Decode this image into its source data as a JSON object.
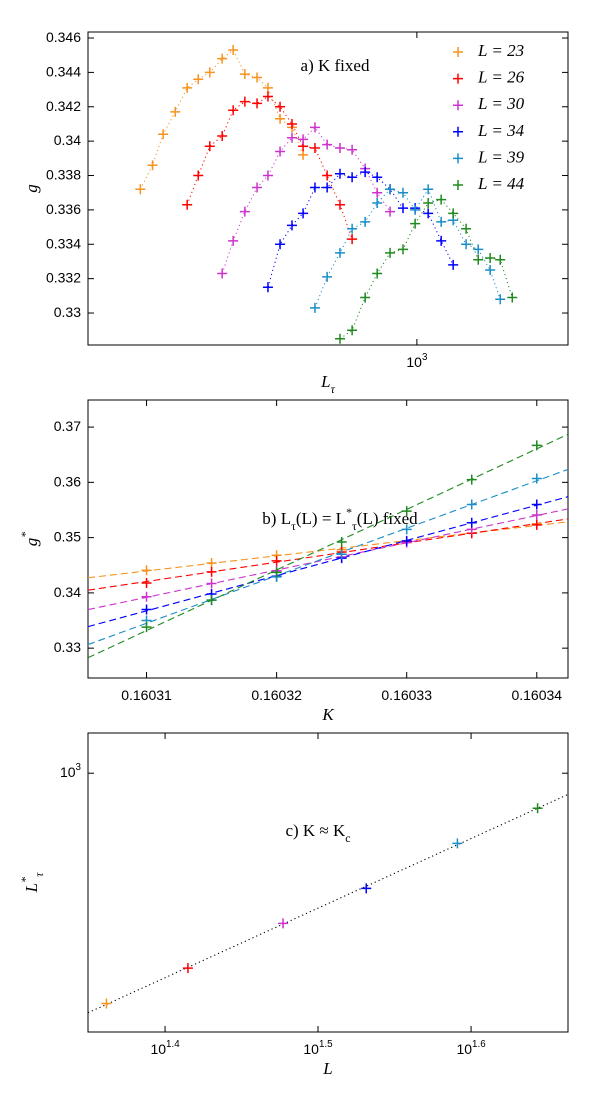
{
  "chart_data": [
    {
      "type": "scatter",
      "annotation": "a) K fixed",
      "xlabel": "L_τ",
      "ylabel": "g",
      "xscale": "log",
      "xlim": [
        125,
        2600
      ],
      "xticks": [
        {
          "value": 1000,
          "label": "10^3"
        }
      ],
      "ylim": [
        0.32814,
        0.34635
      ],
      "yticks": [
        0.33,
        0.332,
        0.334,
        0.336,
        0.338,
        0.34,
        0.342,
        0.344,
        0.346
      ],
      "legend": "upper right",
      "fit": "curve",
      "fit_style": "dotted",
      "series": [
        {
          "name": "L = 23",
          "color": "#f7931e",
          "x": [
            174,
            188,
            201,
            217,
            234,
            251,
            270,
            292,
            313,
            337,
            364,
            390,
            421,
            454,
            487
          ],
          "values": [
            0.3372,
            0.3386,
            0.3404,
            0.3417,
            0.3431,
            0.3436,
            0.344,
            0.3448,
            0.3453,
            0.3439,
            0.3437,
            0.3431,
            0.3413,
            0.3408,
            0.3392
          ]
        },
        {
          "name": "L = 26",
          "color": "#ff0000",
          "x": [
            234,
            251,
            270,
            292,
            313,
            337,
            364,
            390,
            421,
            454,
            487,
            525,
            567,
            615,
            664
          ],
          "values": [
            0.3363,
            0.338,
            0.3397,
            0.3403,
            0.3418,
            0.3423,
            0.3422,
            0.3426,
            0.342,
            0.341,
            0.3397,
            0.3396,
            0.338,
            0.3363,
            0.3343
          ]
        },
        {
          "name": "L = 30",
          "color": "#cc33cc",
          "x": [
            292,
            313,
            337,
            364,
            390,
            421,
            454,
            487,
            525,
            567,
            615,
            664,
            721,
            778,
            844
          ],
          "values": [
            0.3323,
            0.3342,
            0.3359,
            0.3373,
            0.338,
            0.3394,
            0.3402,
            0.3401,
            0.3408,
            0.3398,
            0.3396,
            0.3395,
            0.3384,
            0.337,
            0.3359
          ]
        },
        {
          "name": "L = 34",
          "color": "#0000ff",
          "x": [
            390,
            421,
            454,
            487,
            525,
            567,
            615,
            664,
            721,
            778,
            844,
            916,
            989,
            1074,
            1166,
            1258
          ],
          "values": [
            0.3315,
            0.334,
            0.3351,
            0.3358,
            0.3373,
            0.3373,
            0.3381,
            0.3379,
            0.3382,
            0.3379,
            0.3372,
            0.3361,
            0.3361,
            0.3358,
            0.3342,
            0.3328
          ]
        },
        {
          "name": "L = 39",
          "color": "#1b8ec8",
          "x": [
            525,
            567,
            615,
            664,
            721,
            778,
            844,
            916,
            989,
            1074,
            1166,
            1258,
            1365,
            1474,
            1589,
            1694
          ],
          "values": [
            0.3303,
            0.3321,
            0.3335,
            0.3349,
            0.3353,
            0.3364,
            0.3372,
            0.337,
            0.336,
            0.3372,
            0.3353,
            0.3354,
            0.334,
            0.3337,
            0.3325,
            0.3308
          ]
        },
        {
          "name": "L = 44",
          "color": "#1f8a1f",
          "x": [
            615,
            664,
            721,
            778,
            844,
            916,
            989,
            1074,
            1166,
            1258,
            1365,
            1474,
            1589,
            1694,
            1828
          ],
          "values": [
            0.3285,
            0.329,
            0.3309,
            0.3323,
            0.3335,
            0.3337,
            0.3352,
            0.3364,
            0.3366,
            0.3358,
            0.3349,
            0.3331,
            0.3332,
            0.3331,
            0.3309
          ]
        }
      ]
    },
    {
      "type": "scatter",
      "annotation": "b) L_τ(L) = L^*_τ(L) fixed",
      "xlabel": "K",
      "ylabel": "g^*",
      "xscale": "linear",
      "xlim": [
        0.1603055,
        0.1603424
      ],
      "xticks": [
        0.16031,
        0.16032,
        0.16033,
        0.16034
      ],
      "ylim": [
        0.3246,
        0.3749
      ],
      "yticks": [
        0.33,
        0.34,
        0.35,
        0.36,
        0.37
      ],
      "fit": "linear",
      "fit_style": "dashed",
      "series": [
        {
          "color": "#f7931e",
          "x": [
            0.16031,
            0.160315,
            0.16032,
            0.160325,
            0.16033,
            0.160335,
            0.16034
          ],
          "values": [
            0.3441,
            0.3454,
            0.3468,
            0.3478,
            0.3492,
            0.3508,
            0.3525
          ]
        },
        {
          "color": "#ff0000",
          "x": [
            0.16031,
            0.160315,
            0.16032,
            0.160325,
            0.16033,
            0.160335,
            0.16034
          ],
          "values": [
            0.3418,
            0.3438,
            0.3458,
            0.3474,
            0.3492,
            0.3508,
            0.3523
          ]
        },
        {
          "color": "#cc33cc",
          "x": [
            0.16031,
            0.160315,
            0.16032,
            0.160325,
            0.16033,
            0.160335,
            0.16034
          ],
          "values": [
            0.3393,
            0.3417,
            0.344,
            0.3465,
            0.3491,
            0.3515,
            0.3541
          ]
        },
        {
          "color": "#0000ff",
          "x": [
            0.16031,
            0.160315,
            0.16032,
            0.160325,
            0.16033,
            0.160335,
            0.16034
          ],
          "values": [
            0.337,
            0.3398,
            0.343,
            0.3463,
            0.3494,
            0.3527,
            0.356
          ]
        },
        {
          "color": "#1b8ec8",
          "x": [
            0.16031,
            0.160315,
            0.16032,
            0.160325,
            0.16033,
            0.160335,
            0.16034
          ],
          "values": [
            0.335,
            0.3387,
            0.3429,
            0.347,
            0.3515,
            0.356,
            0.3607
          ]
        },
        {
          "color": "#1f8a1f",
          "x": [
            0.16031,
            0.160315,
            0.16032,
            0.160325,
            0.16033,
            0.160335,
            0.16034
          ],
          "values": [
            0.3338,
            0.3387,
            0.3437,
            0.3492,
            0.3548,
            0.3605,
            0.3667
          ]
        }
      ]
    },
    {
      "type": "scatter",
      "annotation": "c) K ≈ K_c",
      "xlabel": "L",
      "ylabel": "L^*_τ",
      "xscale": "log",
      "yscale": "log",
      "xlim": [
        22.37,
        46.06
      ],
      "xticks": [
        {
          "value": 25.12,
          "label": "10^{1.4}"
        },
        {
          "value": 31.62,
          "label": "10^{1.5}"
        },
        {
          "value": 39.81,
          "label": "10^{1.6}"
        }
      ],
      "ylim": [
        423,
        1143
      ],
      "yticks": [
        {
          "value": 1000,
          "label": "10^3"
        }
      ],
      "fit": "linear",
      "fit_style": "dotted",
      "fit_color": "#000000",
      "x": [
        23,
        26,
        30,
        34,
        39,
        44
      ],
      "values": [
        465,
        523,
        607,
        682,
        792,
        890
      ],
      "colors": [
        "#f7931e",
        "#ff0000",
        "#cc33cc",
        "#0000ff",
        "#1b8ec8",
        "#1f8a1f"
      ]
    }
  ]
}
